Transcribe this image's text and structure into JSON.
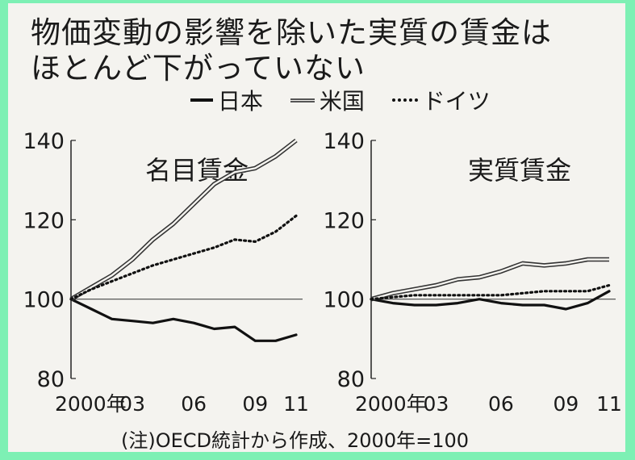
{
  "title": [
    "物価変動の影響を除いた実質の賃金は",
    "ほとんど下がっていない"
  ],
  "legend": [
    {
      "label": "日本",
      "style": "solid"
    },
    {
      "label": "米国",
      "style": "double"
    },
    {
      "label": "ドイツ",
      "style": "dotted"
    }
  ],
  "note": "(注)OECD統計から作成、2000年=100",
  "chart_data": [
    {
      "type": "line",
      "title": "名目賃金",
      "x": [
        2000,
        2001,
        2002,
        2003,
        2004,
        2005,
        2006,
        2007,
        2008,
        2009,
        2010,
        2011
      ],
      "x_ticks": [
        "2000年",
        "03",
        "06",
        "09",
        "11"
      ],
      "y_ticks": [
        "80",
        "100",
        "120",
        "140"
      ],
      "ylim": [
        80,
        140
      ],
      "reference_line": 100,
      "series": [
        {
          "name": "日本",
          "values": [
            100,
            97.5,
            95,
            94.5,
            94,
            95,
            94,
            92.5,
            93,
            89.5,
            89.5,
            91
          ]
        },
        {
          "name": "米国",
          "values": [
            100,
            103,
            106,
            110,
            115,
            119,
            124,
            129,
            132,
            133,
            136,
            140
          ]
        },
        {
          "name": "ドイツ",
          "values": [
            100,
            102.5,
            104.5,
            106.5,
            108.5,
            110,
            111.5,
            113,
            115,
            114.5,
            117,
            121
          ]
        }
      ]
    },
    {
      "type": "line",
      "title": "実質賃金",
      "x": [
        2000,
        2001,
        2002,
        2003,
        2004,
        2005,
        2006,
        2007,
        2008,
        2009,
        2010,
        2011
      ],
      "x_ticks": [
        "2000年",
        "03",
        "06",
        "09",
        "11"
      ],
      "y_ticks": [
        "80",
        "100",
        "120",
        "140"
      ],
      "ylim": [
        80,
        140
      ],
      "reference_line": 100,
      "series": [
        {
          "name": "日本",
          "values": [
            100,
            99,
            98.5,
            98.5,
            99,
            100,
            99,
            98.5,
            98.5,
            97.5,
            99,
            102
          ]
        },
        {
          "name": "米国",
          "values": [
            100,
            101.5,
            102.5,
            103.5,
            105,
            105.5,
            107,
            109,
            108.5,
            109,
            110,
            110
          ]
        },
        {
          "name": "ドイツ",
          "values": [
            100,
            100.5,
            101,
            101,
            101,
            101,
            101,
            101.5,
            102,
            102,
            102,
            103.5
          ]
        }
      ]
    }
  ]
}
